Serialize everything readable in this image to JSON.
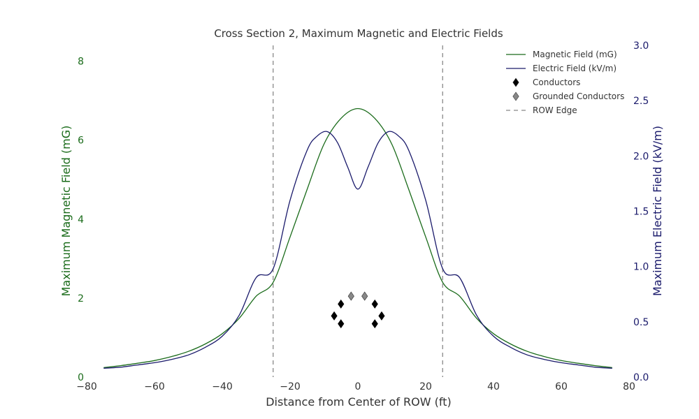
{
  "chart_data": {
    "type": "line",
    "title": "Cross Section 2, Maximum Magnetic and Electric Fields",
    "xlabel": "Distance from Center of ROW (ft)",
    "ylabel_left": "Maximum Magnetic Field (mG)",
    "ylabel_right": "Maximum Electric Field (kV/m)",
    "xlim": [
      -80,
      80
    ],
    "ylim_left": [
      0,
      8.4
    ],
    "ylim_right": [
      0,
      3.0
    ],
    "x_ticks": [
      "−80",
      "−60",
      "−40",
      "−20",
      "0",
      "20",
      "40",
      "60",
      "80"
    ],
    "left_ticks": [
      "0",
      "2",
      "4",
      "6",
      "8"
    ],
    "right_ticks": [
      "0.0",
      "0.5",
      "1.0",
      "1.5",
      "2.0",
      "2.5",
      "3.0"
    ],
    "grid": false,
    "legend_position": "top-right",
    "colors": {
      "magnetic": "#1a6b1a",
      "electric": "#1a1a6b",
      "conductor": "#000000",
      "grounded": "#888888",
      "row_edge": "#888888"
    },
    "series": [
      {
        "name": "Magnetic Field (mG)",
        "axis": "left",
        "x": [
          -75,
          -70,
          -65,
          -60,
          -55,
          -50,
          -45,
          -40,
          -35,
          -30,
          -25,
          -20,
          -15,
          -10,
          -5,
          0,
          5,
          10,
          15,
          20,
          25,
          30,
          35,
          40,
          45,
          50,
          55,
          60,
          65,
          70,
          75
        ],
        "values": [
          0.24,
          0.29,
          0.35,
          0.42,
          0.52,
          0.65,
          0.84,
          1.1,
          1.49,
          2.05,
          2.4,
          3.55,
          4.75,
          5.9,
          6.55,
          6.8,
          6.55,
          5.9,
          4.75,
          3.55,
          2.4,
          2.05,
          1.49,
          1.1,
          0.84,
          0.65,
          0.52,
          0.42,
          0.35,
          0.29,
          0.24
        ]
      },
      {
        "name": "Electric Field (kV/m)",
        "axis": "right",
        "x": [
          -75,
          -70,
          -65,
          -60,
          -55,
          -50,
          -45,
          -40,
          -35,
          -30,
          -25,
          -20,
          -15,
          -12,
          -9,
          -6,
          -3,
          0,
          3,
          6,
          9,
          12,
          15,
          20,
          25,
          30,
          35,
          40,
          45,
          50,
          55,
          60,
          65,
          70,
          75
        ],
        "values": [
          0.08,
          0.09,
          0.11,
          0.13,
          0.16,
          0.2,
          0.27,
          0.37,
          0.56,
          0.9,
          0.98,
          1.6,
          2.05,
          2.18,
          2.22,
          2.12,
          1.9,
          1.7,
          1.9,
          2.12,
          2.22,
          2.18,
          2.05,
          1.6,
          0.98,
          0.9,
          0.56,
          0.37,
          0.27,
          0.2,
          0.16,
          0.13,
          0.11,
          0.09,
          0.08
        ]
      },
      {
        "name": "Conductors",
        "type": "scatter",
        "axis": "left",
        "x": [
          -5,
          -7,
          -5,
          5,
          7,
          5
        ],
        "values": [
          1.85,
          1.55,
          1.35,
          1.85,
          1.55,
          1.35
        ]
      },
      {
        "name": "Grounded Conductors",
        "type": "scatter",
        "axis": "left",
        "x": [
          -2,
          2
        ],
        "values": [
          2.05,
          2.05
        ]
      },
      {
        "name": "ROW Edge",
        "type": "vline",
        "x": [
          -25,
          25
        ]
      }
    ]
  }
}
